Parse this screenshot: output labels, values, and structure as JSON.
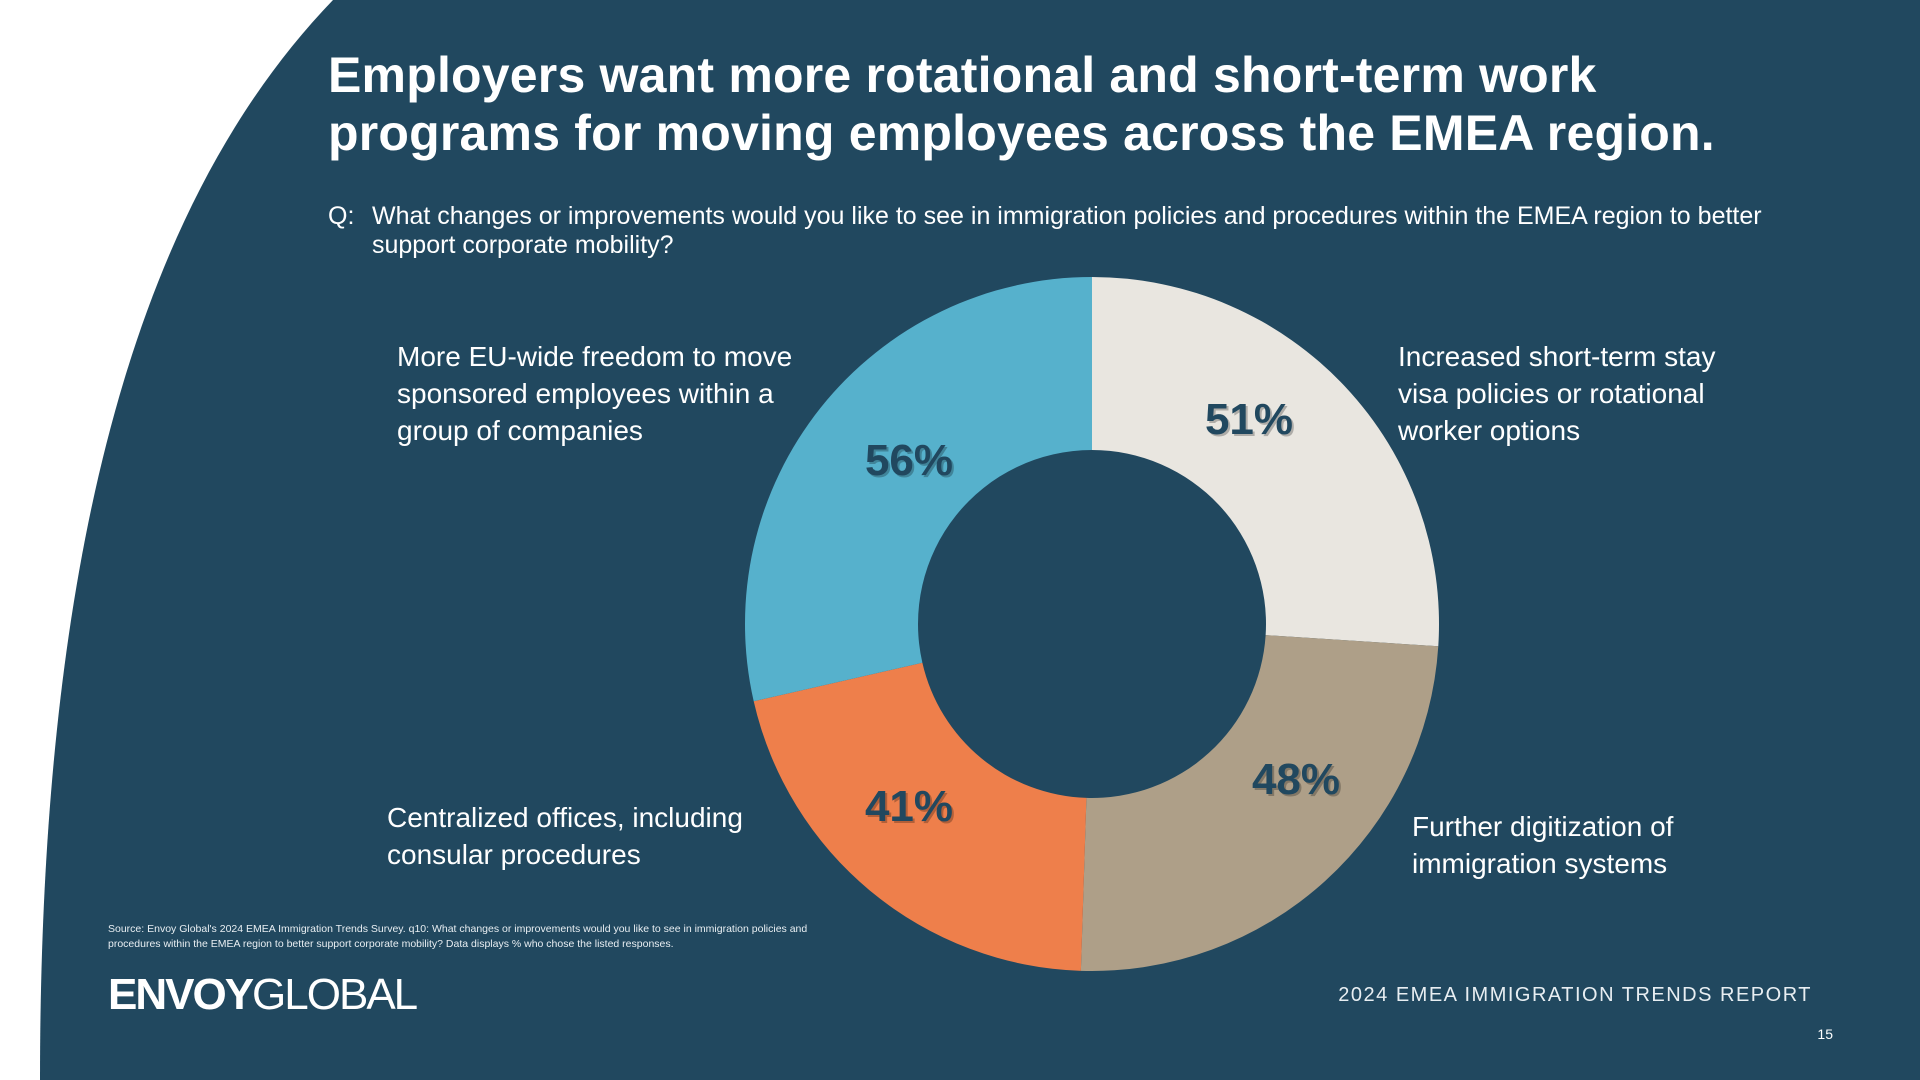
{
  "title_lines": [
    "Employers want more rotational and short-term work",
    "programs for moving employees across the EMEA region."
  ],
  "question": {
    "prefix": "Q:",
    "text": "What changes or improvements would you like to see in immigration policies and procedures within the EMEA region to better support corporate mobility?"
  },
  "colors": {
    "background": "#21485F",
    "beige": "#E9E6E0",
    "taupe": "#AE9F88",
    "orange": "#EE7F4B",
    "blue": "#56B1CC"
  },
  "chart_data": {
    "type": "pie",
    "variant": "donut",
    "start": "top",
    "direction": "clockwise",
    "unit": "%",
    "slices": [
      {
        "label": "Increased short-term stay visa policies or rotational worker options",
        "value": 51,
        "display": "51%",
        "color": "#E9E6E0"
      },
      {
        "label": "Further digitization of immigration systems",
        "value": 48,
        "display": "48%",
        "color": "#AE9F88"
      },
      {
        "label": "Centralized offices, including consular procedures",
        "value": 41,
        "display": "41%",
        "color": "#EE7F4B"
      },
      {
        "label": "More EU-wide freedom to move sponsored employees within a group of companies",
        "value": 56,
        "display": "56%",
        "color": "#56B1CC"
      }
    ]
  },
  "labels": {
    "top_left": [
      "More EU-wide freedom to move",
      "sponsored employees within a",
      "group of companies"
    ],
    "top_right": [
      "Increased short-term stay",
      "visa policies or rotational",
      "worker options"
    ],
    "bottom_left": [
      "Centralized offices, including",
      "consular procedures"
    ],
    "bottom_right": [
      "Further digitization of",
      "immigration systems"
    ]
  },
  "source": "Source: Envoy Global's 2024 EMEA Immigration Trends Survey. q10: What changes or improvements would you like to see in immigration policies and procedures within the EMEA region to better support corporate mobility? Data displays % who chose the listed responses.",
  "logo": {
    "bold": "ENVOY",
    "light": "GLOBAL"
  },
  "report_name": "2024 EMEA IMMIGRATION TRENDS REPORT",
  "page_number": "15"
}
